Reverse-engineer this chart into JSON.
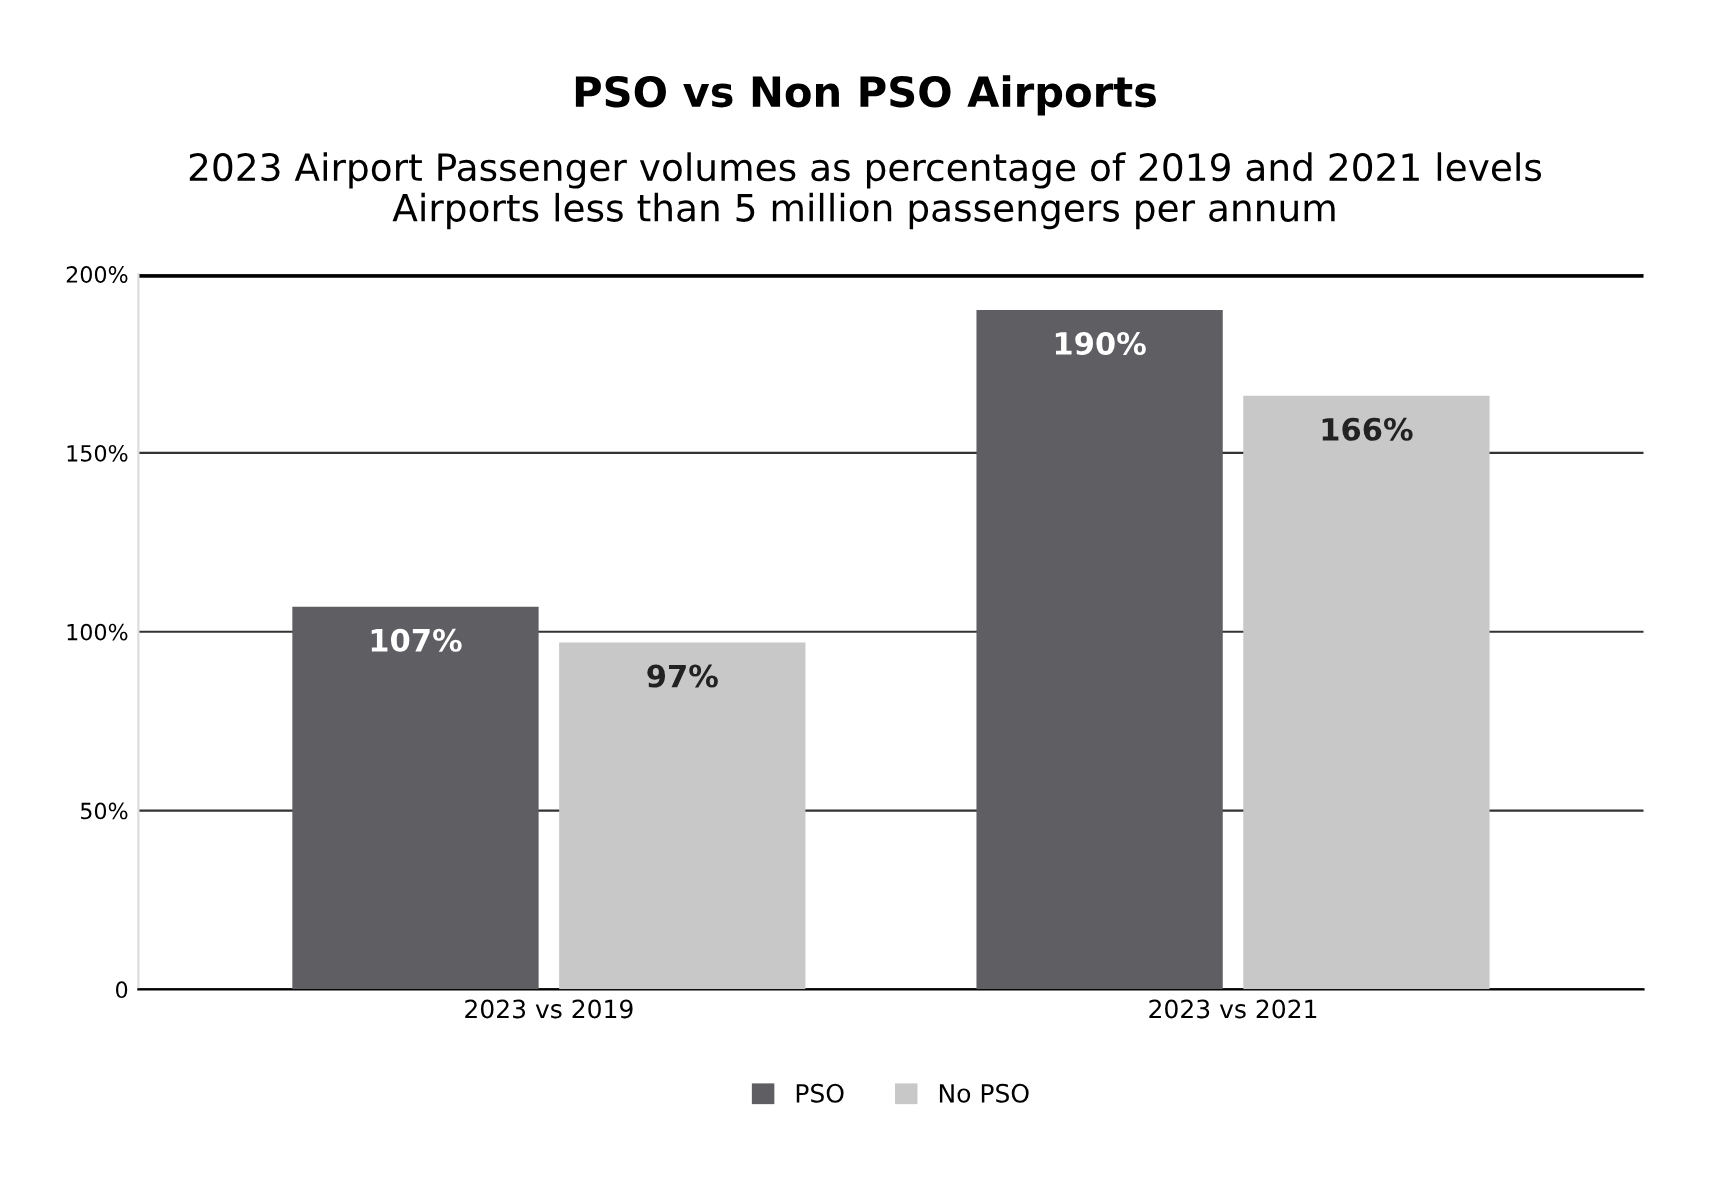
{
  "chart_data": {
    "type": "bar",
    "title": "PSO vs Non PSO Airports",
    "subtitle": "2023 Airport Passenger volumes as percentage of 2019 and 2021 levels\nAirports less than 5 million passengers per annum",
    "categories": [
      "2023 vs 2019",
      "2023 vs 2021"
    ],
    "series": [
      {
        "name": "PSO",
        "color": "#5f5f63",
        "values": [
          107,
          190
        ],
        "value_labels": [
          "107%",
          "190%"
        ]
      },
      {
        "name": "No PSO",
        "color": "#c8c8c8",
        "values": [
          97,
          166
        ],
        "value_labels": [
          "97%",
          "166%"
        ]
      }
    ],
    "ylim": [
      0,
      200
    ],
    "yticks": [
      0,
      {
        "value": 50,
        "label": "50%"
      },
      {
        "value": 100,
        "label": "100%"
      },
      {
        "value": 150,
        "label": "150%"
      },
      {
        "value": 200,
        "label": "200%"
      }
    ],
    "grid": "y",
    "legend": "bottom"
  }
}
